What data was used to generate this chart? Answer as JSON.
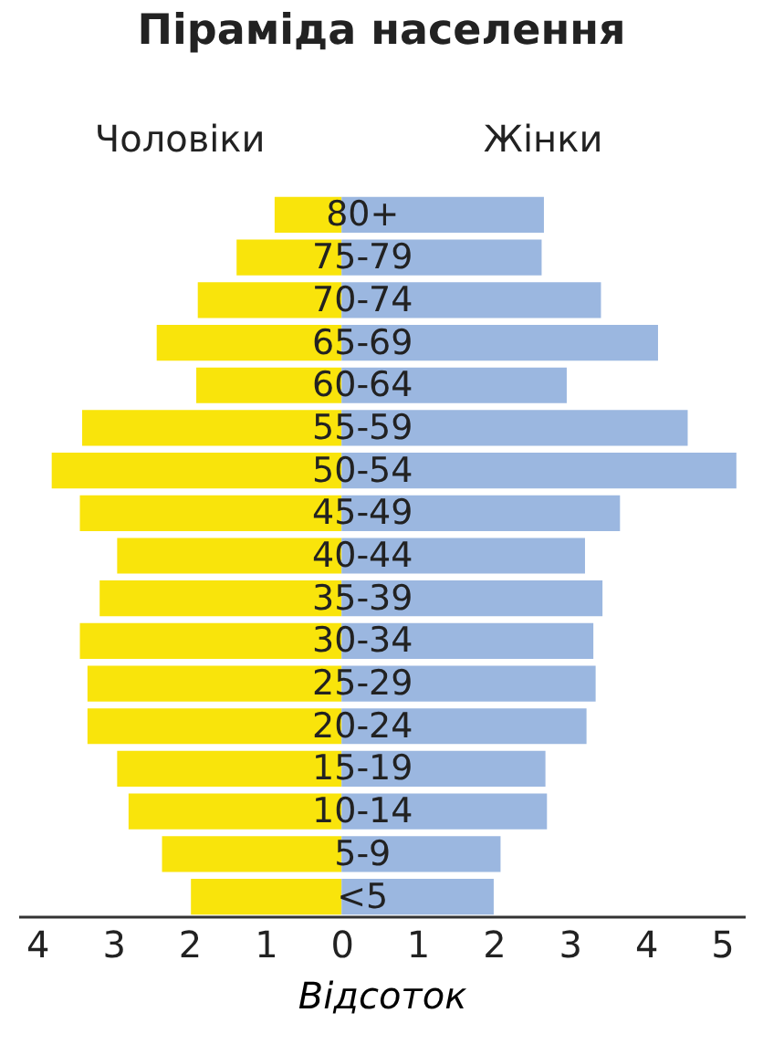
{
  "chart_data": {
    "type": "bar",
    "orientation": "horizontal",
    "title": "Піраміда населення",
    "xlabel": "Відсоток",
    "categories": [
      "80+",
      "75-79",
      "70-74",
      "65-69",
      "60-64",
      "55-59",
      "50-54",
      "45-49",
      "40-44",
      "35-39",
      "30-34",
      "25-29",
      "20-24",
      "15-19",
      "10-14",
      "5-9",
      "<5"
    ],
    "series": [
      {
        "name": "Чоловіки",
        "color": "#f9e40b",
        "values": [
          -0.88,
          -1.38,
          -1.89,
          -2.43,
          -1.91,
          -3.41,
          -3.81,
          -3.44,
          -2.95,
          -3.18,
          -3.44,
          -3.34,
          -3.34,
          -2.95,
          -2.8,
          -2.36,
          -1.98
        ]
      },
      {
        "name": "Жінки",
        "color": "#9bb7e0",
        "values": [
          2.66,
          2.63,
          3.41,
          4.16,
          2.96,
          4.55,
          5.19,
          3.66,
          3.2,
          3.43,
          3.31,
          3.34,
          3.22,
          2.68,
          2.7,
          2.09,
          2.0
        ]
      }
    ],
    "xlim": [
      -4.25,
      5.3
    ],
    "xticks": [
      {
        "value": -4,
        "label": "4"
      },
      {
        "value": -3,
        "label": "3"
      },
      {
        "value": -2,
        "label": "2"
      },
      {
        "value": -1,
        "label": "1"
      },
      0,
      1,
      2,
      3,
      4,
      5
    ],
    "legend": "top",
    "grid": false,
    "stacked": true
  }
}
